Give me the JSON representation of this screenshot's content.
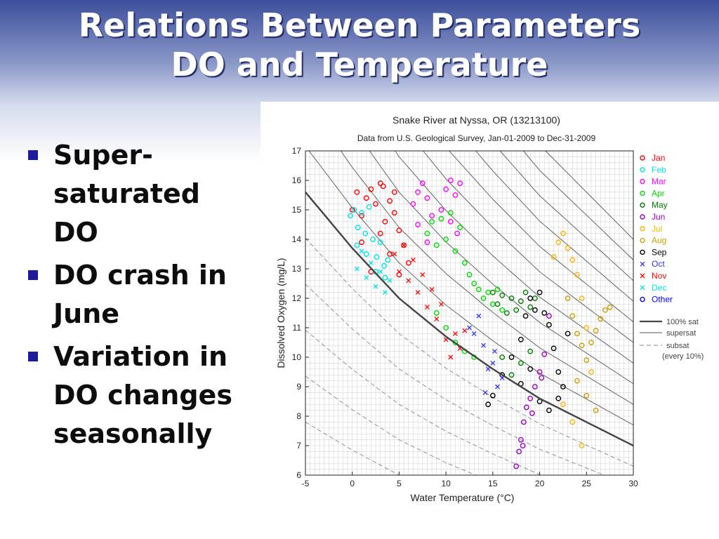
{
  "slide": {
    "title_line1": "Relations Between Parameters",
    "title_line2": "DO and Temperature",
    "bullets": [
      "Super-\nsaturated\nDO",
      "DO crash in\nJune",
      "Variation in\nDO changes\nseasonally"
    ],
    "colors": {
      "title_text": "#ffffff",
      "bullet_marker": "#1d1a9c",
      "header_gradient_top": "#3d4f9c"
    }
  },
  "chart_data": {
    "type": "scatter",
    "title": "Snake River at Nyssa, OR (13213100)",
    "subtitle": "Data from U.S. Geological Survey, Jan-01-2009 to Dec-31-2009",
    "xlabel": "Water Temperature (°C)",
    "ylabel": "Dissolved Oxygen (mg/L)",
    "xlim": [
      -5,
      30
    ],
    "ylim": [
      6,
      17
    ],
    "xticks": [
      -5,
      0,
      5,
      10,
      15,
      20,
      25,
      30
    ],
    "yticks": [
      6,
      7,
      8,
      9,
      10,
      11,
      12,
      13,
      14,
      15,
      16,
      17
    ],
    "grid": true,
    "legend_position": "right",
    "legend": [
      {
        "label": "Jan",
        "color": "#ff0000",
        "marker": "o"
      },
      {
        "label": "Feb",
        "color": "#00e5e5",
        "marker": "o"
      },
      {
        "label": "Mar",
        "color": "#ff00ff",
        "marker": "o"
      },
      {
        "label": "Apr",
        "color": "#00dd00",
        "marker": "o"
      },
      {
        "label": "May",
        "color": "#007f00",
        "marker": "o"
      },
      {
        "label": "Jun",
        "color": "#a000c8",
        "marker": "o"
      },
      {
        "label": "Jul",
        "color": "#ffb400",
        "marker": "o"
      },
      {
        "label": "Aug",
        "color": "#c8a000",
        "marker": "o"
      },
      {
        "label": "Sep",
        "color": "#000000",
        "marker": "o"
      },
      {
        "label": "Oct",
        "color": "#3030ff",
        "marker": "x"
      },
      {
        "label": "Nov",
        "color": "#ff0000",
        "marker": "x"
      },
      {
        "label": "Dec",
        "color": "#00e5e5",
        "marker": "x"
      },
      {
        "label": "Other",
        "color": "#0000ff",
        "marker": "o"
      }
    ],
    "line_legend": [
      {
        "label": "100% sat",
        "style": "solid-thick"
      },
      {
        "label": "supersat",
        "style": "solid-thin"
      },
      {
        "label": "subsat",
        "style": "dashed"
      },
      {
        "label": "(every 10%)",
        "style": "none"
      }
    ],
    "saturation_curve": {
      "x": [
        -5,
        0,
        5,
        10,
        15,
        20,
        25,
        30
      ],
      "y": [
        15.6,
        13.7,
        12.0,
        10.7,
        9.6,
        8.6,
        7.8,
        7.0
      ]
    },
    "percent_lines": [
      50,
      60,
      70,
      80,
      90,
      110,
      120,
      130,
      140,
      150,
      160,
      170,
      180,
      190,
      200
    ],
    "series": [
      {
        "name": "Jan",
        "color": "#ff0000",
        "marker": "o",
        "x": [
          0.0,
          0.5,
          1.0,
          1.5,
          2.0,
          2.5,
          3.0,
          3.5,
          4.0,
          4.5,
          5.0,
          5.5,
          6.0,
          1.0,
          2.0,
          3.0,
          4.0,
          5.0,
          3.3,
          4.5
        ],
        "y": [
          15.0,
          15.6,
          14.8,
          15.4,
          15.7,
          15.2,
          15.9,
          14.6,
          15.3,
          14.9,
          14.3,
          13.8,
          13.2,
          13.9,
          12.9,
          14.2,
          13.5,
          12.8,
          15.8,
          15.6
        ]
      },
      {
        "name": "Feb",
        "color": "#00e5e5",
        "marker": "o",
        "x": [
          -0.2,
          0.2,
          0.6,
          1.0,
          1.4,
          1.8,
          2.2,
          2.6,
          3.0,
          3.4,
          3.8,
          0.5,
          1.5,
          2.5,
          3.5
        ],
        "y": [
          14.8,
          15.0,
          14.4,
          14.9,
          14.2,
          15.1,
          14.0,
          13.4,
          13.9,
          13.1,
          13.3,
          13.8,
          13.5,
          12.9,
          12.7
        ]
      },
      {
        "name": "Mar",
        "color": "#ff00ff",
        "marker": "o",
        "x": [
          6.5,
          7.0,
          7.5,
          8.0,
          8.5,
          9.5,
          10.0,
          10.5,
          11.0,
          11.5,
          7.0,
          8.0,
          10.5,
          11.2
        ],
        "y": [
          15.2,
          15.6,
          15.9,
          15.4,
          14.8,
          15.0,
          15.7,
          16.0,
          15.5,
          15.9,
          14.5,
          13.9,
          14.6,
          14.2
        ]
      },
      {
        "name": "Apr",
        "color": "#00dd00",
        "marker": "o",
        "x": [
          8.0,
          8.5,
          9.0,
          9.5,
          10.0,
          10.5,
          11.0,
          11.5,
          12.0,
          12.5,
          13.0,
          13.5,
          14.0,
          14.5,
          15.0,
          15.5,
          16.0,
          9.0,
          10.0,
          11.0,
          12.0,
          13.0
        ],
        "y": [
          14.2,
          14.6,
          13.8,
          14.7,
          14.0,
          14.9,
          13.6,
          14.4,
          13.2,
          12.8,
          12.5,
          12.3,
          12.0,
          12.2,
          11.8,
          12.3,
          11.6,
          11.5,
          11.0,
          10.5,
          10.2,
          10.0
        ]
      },
      {
        "name": "May",
        "color": "#007f00",
        "marker": "o",
        "x": [
          15.0,
          15.5,
          16.0,
          16.5,
          17.0,
          17.5,
          18.0,
          18.5,
          19.0,
          19.5,
          16.0,
          17.0,
          18.0,
          19.0
        ],
        "y": [
          12.2,
          11.8,
          12.1,
          11.5,
          12.0,
          11.6,
          11.9,
          12.2,
          11.7,
          12.0,
          10.0,
          9.4,
          9.8,
          10.2
        ]
      },
      {
        "name": "Jun",
        "color": "#a000c8",
        "marker": "o",
        "x": [
          17.5,
          17.8,
          18.0,
          18.3,
          18.6,
          19.0,
          19.5,
          20.0,
          20.5,
          21.0,
          18.2,
          19.2,
          20.2
        ],
        "y": [
          6.3,
          6.8,
          7.2,
          7.8,
          8.3,
          8.6,
          9.0,
          9.5,
          10.1,
          11.4,
          7.0,
          8.1,
          9.3
        ]
      },
      {
        "name": "Jul",
        "color": "#ffb400",
        "marker": "o",
        "x": [
          21.5,
          22.0,
          22.5,
          23.0,
          23.5,
          24.0,
          24.5,
          25.0,
          25.5,
          22.5,
          23.5,
          24.5
        ],
        "y": [
          13.4,
          13.9,
          14.2,
          13.7,
          13.3,
          12.8,
          12.0,
          11.0,
          9.5,
          8.4,
          7.8,
          7.0
        ]
      },
      {
        "name": "Aug",
        "color": "#c8a000",
        "marker": "o",
        "x": [
          23.0,
          23.5,
          24.0,
          24.5,
          25.0,
          25.5,
          26.0,
          26.5,
          27.0,
          27.5,
          24.0,
          25.0,
          26.0
        ],
        "y": [
          12.0,
          11.4,
          10.8,
          10.4,
          9.9,
          10.5,
          10.9,
          11.3,
          11.6,
          11.7,
          9.2,
          8.7,
          8.2
        ]
      },
      {
        "name": "Sep",
        "color": "#000000",
        "marker": "o",
        "x": [
          14.5,
          15.0,
          16.0,
          17.0,
          18.0,
          18.5,
          19.0,
          19.5,
          20.0,
          20.5,
          21.0,
          21.5,
          22.0,
          22.5,
          23.0,
          18.0,
          19.0,
          20.0,
          21.0,
          22.0
        ],
        "y": [
          8.4,
          8.7,
          9.4,
          10.0,
          10.6,
          11.4,
          12.0,
          11.6,
          12.2,
          11.5,
          11.1,
          10.3,
          9.5,
          9.0,
          10.8,
          9.1,
          9.6,
          8.5,
          8.2,
          8.6
        ]
      },
      {
        "name": "Oct",
        "color": "#3030ff",
        "marker": "x",
        "x": [
          12.5,
          13.0,
          13.5,
          14.0,
          14.5,
          15.0,
          15.5,
          16.0,
          14.2,
          15.2
        ],
        "y": [
          11.0,
          10.8,
          11.4,
          10.4,
          9.6,
          9.8,
          9.0,
          9.3,
          8.8,
          10.2
        ]
      },
      {
        "name": "Nov",
        "color": "#ff0000",
        "marker": "x",
        "x": [
          4.5,
          5.0,
          5.5,
          6.0,
          6.5,
          7.0,
          7.5,
          8.0,
          8.5,
          9.0,
          9.5,
          10.0,
          10.5,
          11.0,
          11.5,
          12.0
        ],
        "y": [
          13.5,
          12.9,
          13.8,
          12.6,
          13.3,
          12.2,
          12.8,
          11.7,
          12.3,
          11.3,
          11.8,
          10.6,
          10.0,
          10.8,
          10.3,
          10.9
        ]
      },
      {
        "name": "Dec",
        "color": "#00e5e5",
        "marker": "x",
        "x": [
          0.5,
          1.0,
          1.5,
          2.0,
          2.5,
          3.0,
          3.5,
          4.0
        ],
        "y": [
          13.0,
          13.6,
          12.7,
          13.2,
          12.4,
          12.9,
          12.2,
          12.6
        ]
      }
    ]
  }
}
